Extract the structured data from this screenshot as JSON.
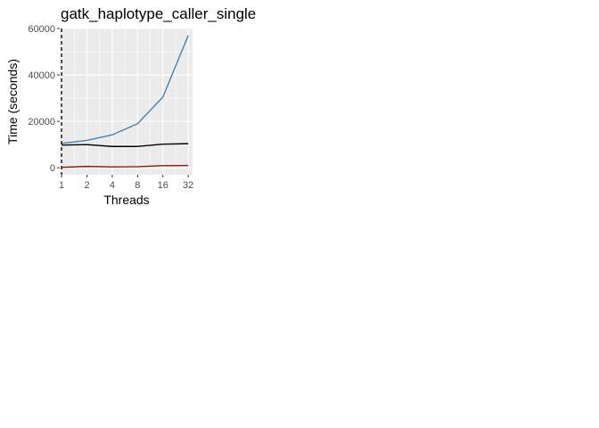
{
  "chart_data": {
    "type": "line",
    "title": "gatk_haplotype_caller_single",
    "xlabel": "Threads",
    "ylabel": "Time (seconds)",
    "x_scale": "log2",
    "x": [
      1,
      2,
      4,
      8,
      16,
      32
    ],
    "x_tick_labels": [
      "1",
      "2",
      "4",
      "8",
      "16",
      "32"
    ],
    "y_ticks": [
      0,
      20000,
      40000,
      60000
    ],
    "y_tick_labels": [
      "0",
      "20000",
      "40000",
      "60000"
    ],
    "xlim": [
      0.95,
      36
    ],
    "ylim": [
      -3000,
      60000
    ],
    "grid": true,
    "legend": "none",
    "reference_line": {
      "x": 1,
      "style": "dashed",
      "color": "#000000"
    },
    "series": [
      {
        "color": "#4682b4",
        "values": [
          10500,
          11800,
          14200,
          19000,
          30500,
          57000
        ]
      },
      {
        "color": "#000000",
        "values": [
          9800,
          10000,
          9200,
          9200,
          10200,
          10400
        ]
      },
      {
        "color": "#8b1a00",
        "values": [
          200,
          600,
          400,
          500,
          900,
          1000
        ]
      }
    ]
  }
}
